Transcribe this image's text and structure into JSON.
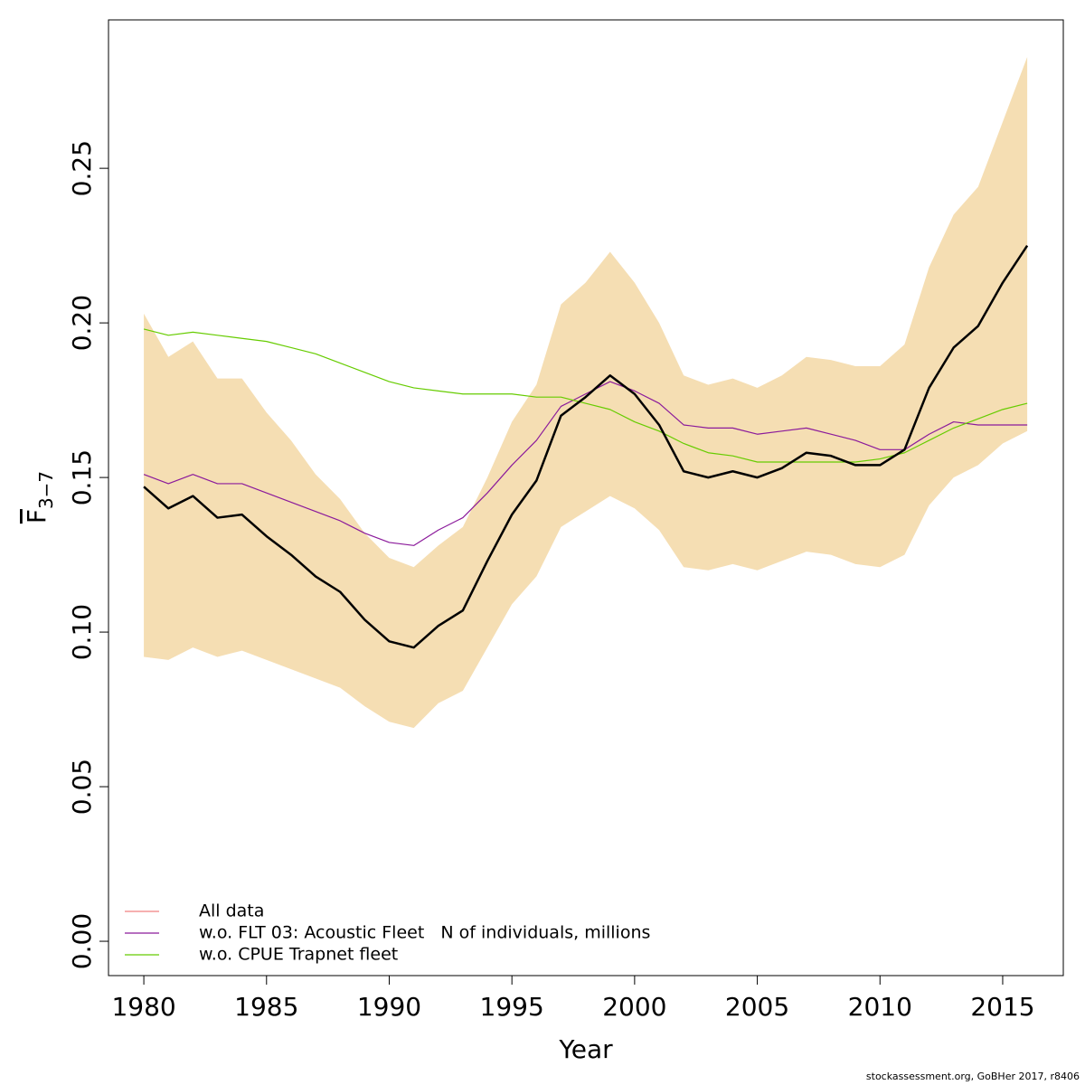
{
  "chart_data": {
    "type": "line",
    "x_label": "Year",
    "y_label": {
      "main": "F",
      "subscript": "3−7"
    },
    "footer": "stockassessment.org, GoBHer 2017, r8406",
    "x": [
      1980,
      1981,
      1982,
      1983,
      1984,
      1985,
      1986,
      1987,
      1988,
      1989,
      1990,
      1991,
      1992,
      1993,
      1994,
      1995,
      1996,
      1997,
      1998,
      1999,
      2000,
      2001,
      2002,
      2003,
      2004,
      2005,
      2006,
      2007,
      2008,
      2009,
      2010,
      2011,
      2012,
      2013,
      2014,
      2015,
      2016
    ],
    "xlim": [
      1978.56,
      2017.47
    ],
    "xticks": [
      1980,
      1985,
      1990,
      1995,
      2000,
      2005,
      2010,
      2015
    ],
    "ylim": [
      -0.0111,
      0.298
    ],
    "yticks": [
      {
        "value": 0,
        "label": "0.00"
      },
      {
        "value": 0.05,
        "label": "0.05"
      },
      {
        "value": 0.1,
        "label": "0.10"
      },
      {
        "value": 0.15,
        "label": "0.15"
      },
      {
        "value": 0.2,
        "label": "0.20"
      },
      {
        "value": 0.25,
        "label": "0.25"
      }
    ],
    "estimate": {
      "color": "#000000",
      "band_color": "#f5deb3",
      "values": [
        0.147,
        0.14,
        0.144,
        0.137,
        0.138,
        0.131,
        0.125,
        0.118,
        0.113,
        0.104,
        0.097,
        0.095,
        0.102,
        0.107,
        0.123,
        0.138,
        0.149,
        0.17,
        0.176,
        0.183,
        0.177,
        0.167,
        0.152,
        0.15,
        0.152,
        0.15,
        0.153,
        0.158,
        0.157,
        0.154,
        0.154,
        0.159,
        0.179,
        0.192,
        0.199,
        0.213,
        0.225
      ],
      "upper": [
        0.203,
        0.189,
        0.194,
        0.182,
        0.182,
        0.171,
        0.162,
        0.151,
        0.143,
        0.132,
        0.124,
        0.121,
        0.128,
        0.134,
        0.15,
        0.168,
        0.18,
        0.206,
        0.213,
        0.223,
        0.213,
        0.2,
        0.183,
        0.18,
        0.182,
        0.179,
        0.183,
        0.189,
        0.188,
        0.186,
        0.186,
        0.193,
        0.218,
        0.235,
        0.244,
        0.265,
        0.286
      ],
      "lower": [
        0.092,
        0.091,
        0.095,
        0.092,
        0.094,
        0.091,
        0.088,
        0.085,
        0.082,
        0.076,
        0.071,
        0.069,
        0.077,
        0.081,
        0.095,
        0.109,
        0.118,
        0.134,
        0.139,
        0.144,
        0.14,
        0.133,
        0.121,
        0.12,
        0.122,
        0.12,
        0.123,
        0.126,
        0.125,
        0.122,
        0.121,
        0.125,
        0.141,
        0.15,
        0.154,
        0.161,
        0.165
      ]
    },
    "series": [
      {
        "name": "All data",
        "color": "#f08080",
        "values": [
          0.147,
          0.14,
          0.144,
          0.137,
          0.138,
          0.131,
          0.125,
          0.118,
          0.113,
          0.104,
          0.097,
          0.095,
          0.102,
          0.107,
          0.123,
          0.138,
          0.149,
          0.17,
          0.176,
          0.183,
          0.177,
          0.167,
          0.152,
          0.15,
          0.152,
          0.15,
          0.153,
          0.158,
          0.157,
          0.154,
          0.154,
          0.159,
          0.179,
          0.192,
          0.199,
          0.213,
          0.225
        ]
      },
      {
        "name": "w.o. FLT 03: Acoustic Fleet   N of individuals, millions",
        "color": "#8b1a9b",
        "values": [
          0.151,
          0.148,
          0.151,
          0.148,
          0.148,
          0.145,
          0.142,
          0.139,
          0.136,
          0.132,
          0.129,
          0.128,
          0.133,
          0.137,
          0.145,
          0.154,
          0.162,
          0.173,
          0.177,
          0.181,
          0.178,
          0.174,
          0.167,
          0.166,
          0.166,
          0.164,
          0.165,
          0.166,
          0.164,
          0.162,
          0.159,
          0.159,
          0.164,
          0.168,
          0.167,
          0.167,
          0.167
        ]
      },
      {
        "name": "w.o. CPUE Trapnet fleet",
        "color": "#66cc00",
        "values": [
          0.198,
          0.196,
          0.197,
          0.196,
          0.195,
          0.194,
          0.192,
          0.19,
          0.187,
          0.184,
          0.181,
          0.179,
          0.178,
          0.177,
          0.177,
          0.177,
          0.176,
          0.176,
          0.174,
          0.172,
          0.168,
          0.165,
          0.161,
          0.158,
          0.157,
          0.155,
          0.155,
          0.155,
          0.155,
          0.155,
          0.156,
          0.158,
          0.162,
          0.166,
          0.169,
          0.172,
          0.174
        ]
      }
    ]
  }
}
